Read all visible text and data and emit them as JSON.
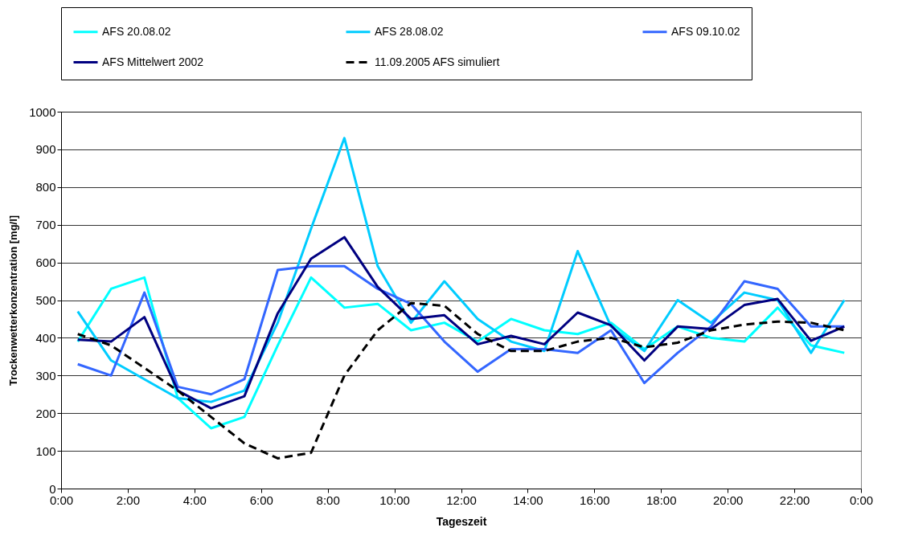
{
  "chart_data": {
    "type": "line",
    "xlabel": "Tageszeit",
    "ylabel": "Trockenwetterkonzentration [mg/l]",
    "x": [
      0.5,
      1.5,
      2.5,
      3.5,
      4.5,
      5.5,
      6.5,
      7.5,
      8.5,
      9.5,
      10.5,
      11.5,
      12.5,
      13.5,
      14.5,
      15.5,
      16.5,
      17.5,
      18.5,
      19.5,
      20.5,
      21.5,
      22.5,
      23.5
    ],
    "series": [
      {
        "name": "AFS 20.08.02",
        "color": "#00ffff",
        "values": [
          390,
          530,
          560,
          240,
          160,
          190,
          380,
          560,
          480,
          490,
          420,
          440,
          390,
          450,
          420,
          410,
          440,
          370,
          430,
          400,
          390,
          480,
          380,
          360
        ]
      },
      {
        "name": "AFS 28.08.02",
        "color": "#00ccff",
        "values": [
          470,
          340,
          290,
          240,
          230,
          260,
          440,
          690,
          930,
          590,
          440,
          550,
          450,
          390,
          365,
          630,
          430,
          365,
          500,
          440,
          520,
          500,
          360,
          500
        ]
      },
      {
        "name": "AFS 09.10.02",
        "color": "#3366ff",
        "values": [
          330,
          300,
          520,
          270,
          250,
          290,
          580,
          590,
          590,
          530,
          490,
          390,
          310,
          370,
          370,
          360,
          420,
          280,
          360,
          430,
          550,
          530,
          430,
          430
        ]
      },
      {
        "name": "AFS Mittelwert 2002",
        "color": "#000080",
        "values": [
          395,
          390,
          455,
          260,
          213,
          245,
          465,
          610,
          667,
          535,
          450,
          460,
          383,
          405,
          383,
          467,
          433,
          340,
          430,
          423,
          487,
          503,
          392,
          430
        ]
      },
      {
        "name": "11.09.2005 AFS simuliert",
        "color": "#000000",
        "line_style": "dashed",
        "values": [
          410,
          380,
          320,
          260,
          190,
          120,
          80,
          95,
          300,
          420,
          492,
          485,
          410,
          365,
          365,
          390,
          400,
          375,
          387,
          420,
          435,
          443,
          440,
          420
        ]
      }
    ],
    "xlim": [
      0,
      24
    ],
    "xticks": [
      {
        "value": 0,
        "label": "0:00"
      },
      {
        "value": 2,
        "label": "2:00"
      },
      {
        "value": 4,
        "label": "4:00"
      },
      {
        "value": 6,
        "label": "6:00"
      },
      {
        "value": 8,
        "label": "8:00"
      },
      {
        "value": 10,
        "label": "10:00"
      },
      {
        "value": 12,
        "label": "12:00"
      },
      {
        "value": 14,
        "label": "14:00"
      },
      {
        "value": 16,
        "label": "16:00"
      },
      {
        "value": 18,
        "label": "18:00"
      },
      {
        "value": 20,
        "label": "20:00"
      },
      {
        "value": 22,
        "label": "22:00"
      },
      {
        "value": 24,
        "label": "0:00"
      }
    ],
    "ylim": [
      0,
      1000
    ],
    "yticks": [
      0,
      100,
      200,
      300,
      400,
      500,
      600,
      700,
      800,
      900,
      1000
    ],
    "grid": "y",
    "legend": "top",
    "marker": "none",
    "line_style": "solid"
  }
}
